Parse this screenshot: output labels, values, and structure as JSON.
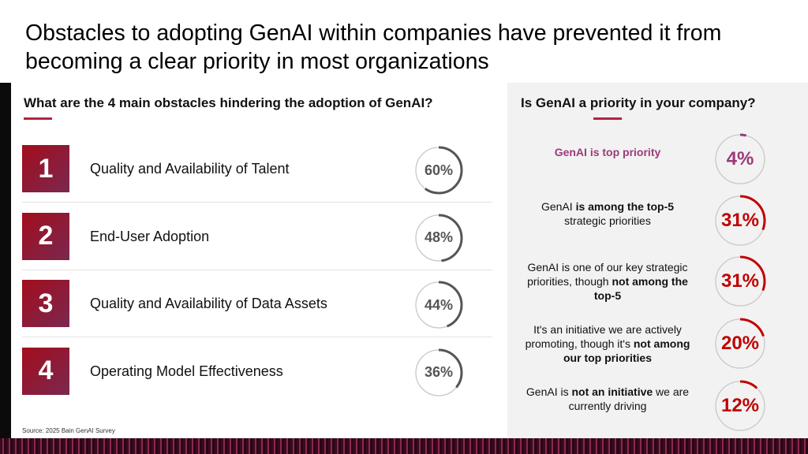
{
  "title": "Obstacles to adopting GenAI within companies have prevented it from becoming a clear priority in most organizations",
  "left": {
    "heading": "What are the 4 main obstacles hindering the adoption of GenAI?",
    "items": [
      {
        "rank": "1",
        "label": "Quality and Availability of Talent",
        "value": 60,
        "pct": "60%"
      },
      {
        "rank": "2",
        "label": "End-User Adoption",
        "value": 48,
        "pct": "48%"
      },
      {
        "rank": "3",
        "label": "Quality and Availability of Data Assets",
        "value": 44,
        "pct": "44%"
      },
      {
        "rank": "4",
        "label": "Operating Model Effectiveness",
        "value": 36,
        "pct": "36%"
      }
    ]
  },
  "right": {
    "heading": "Is GenAI a priority in your company?",
    "items": [
      {
        "parts": [
          [
            "GenAI is top priority",
            true
          ]
        ],
        "value": 4,
        "pct": "4%",
        "color": "#9b3a78"
      },
      {
        "parts": [
          [
            "GenAI ",
            false
          ],
          [
            "is among the top-5",
            true
          ],
          [
            " strategic priorities",
            false
          ]
        ],
        "value": 31,
        "pct": "31%",
        "color": "#c00000"
      },
      {
        "parts": [
          [
            "GenAI is one of our key strategic priorities, though ",
            false
          ],
          [
            "not among the top-5",
            true
          ]
        ],
        "value": 31,
        "pct": "31%",
        "color": "#c00000"
      },
      {
        "parts": [
          [
            "It's an initiative we are actively promoting, though it's ",
            false
          ],
          [
            "not among our top priorities",
            true
          ]
        ],
        "value": 20,
        "pct": "20%",
        "color": "#c00000"
      },
      {
        "parts": [
          [
            "GenAI is ",
            false
          ],
          [
            "not an initiative",
            true
          ],
          [
            " we are currently driving",
            false
          ]
        ],
        "value": 12,
        "pct": "12%",
        "color": "#c00000"
      }
    ]
  },
  "source": "Source: 2025 Bain GenAI Survey",
  "colors": {
    "accent": "#b3243f",
    "arc_left": "#555555",
    "ring_track": "#c8c8c8"
  }
}
